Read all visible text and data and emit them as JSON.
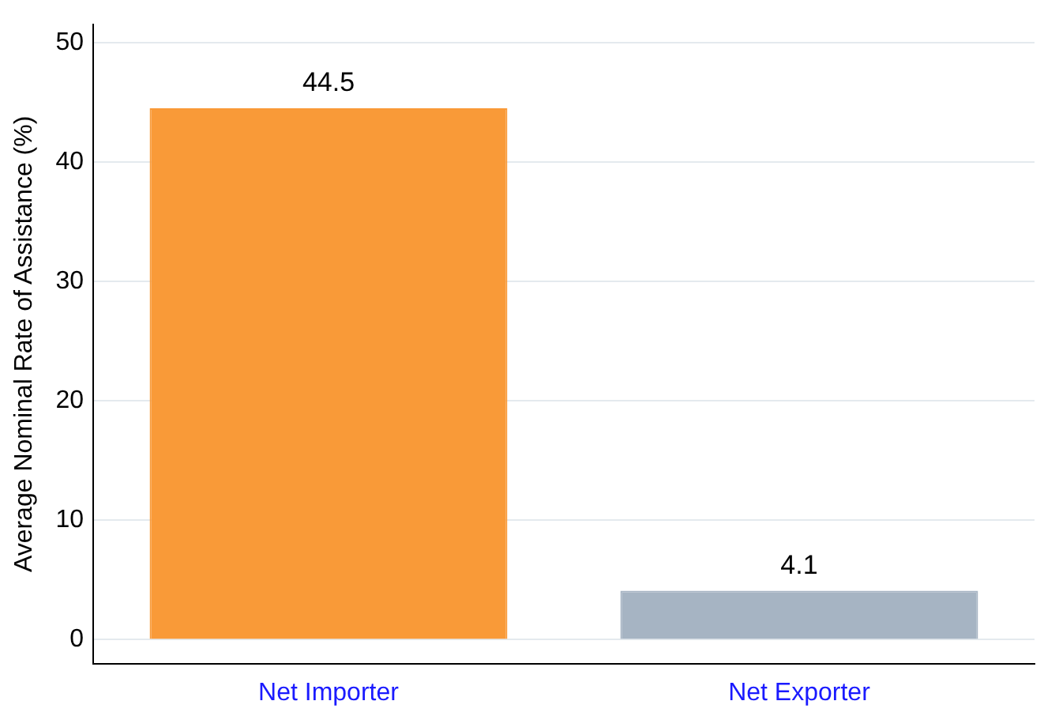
{
  "chart_data": {
    "type": "bar",
    "ylabel": "Average Nominal Rate of Assistance (%)",
    "categories": [
      "Net Importer",
      "Net Exporter"
    ],
    "values": [
      44.5,
      4.1
    ],
    "colors": [
      "#f99a38",
      "#a6b4c3"
    ],
    "ylim": [
      -2,
      51.5
    ],
    "yticks": [
      0,
      10,
      20,
      30,
      40,
      50
    ],
    "grid": "y",
    "data_labels": true,
    "legend": false
  }
}
